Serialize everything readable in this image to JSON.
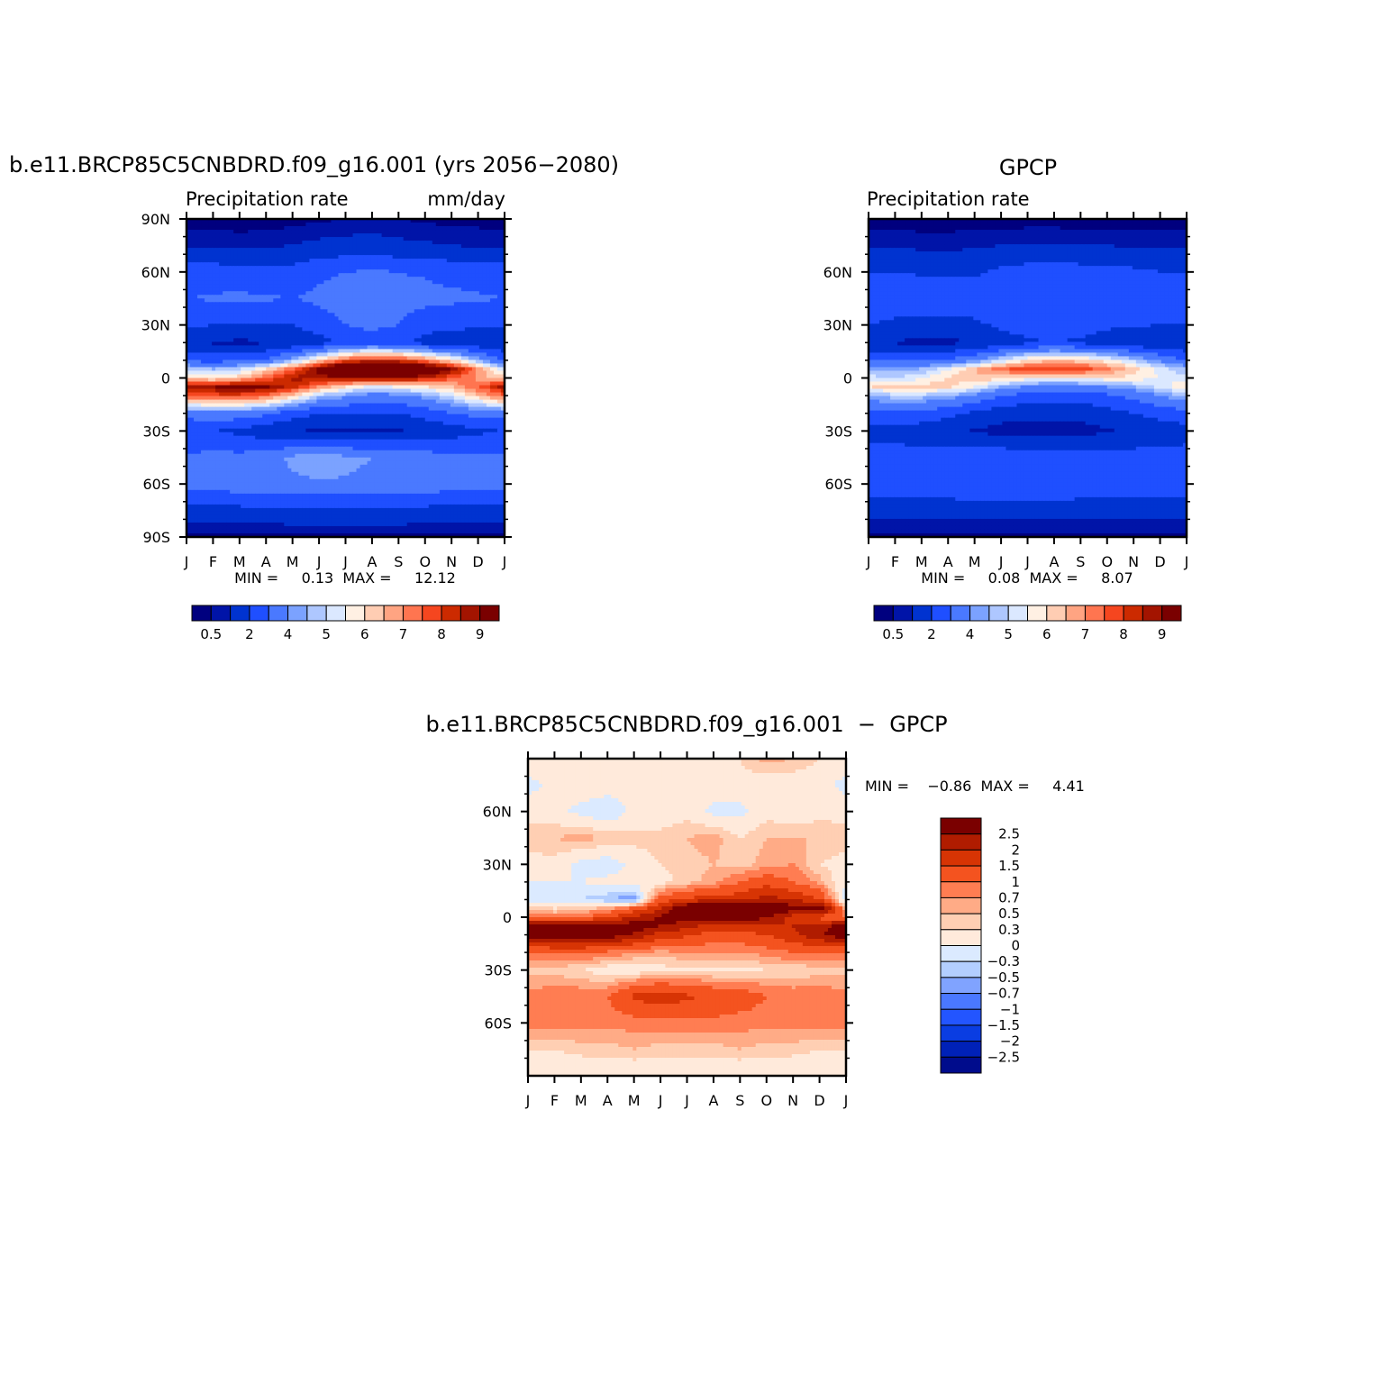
{
  "colors": {
    "precip_scale": [
      "#00007f",
      "#0014a8",
      "#0033d0",
      "#1f4fff",
      "#4a79ff",
      "#7ba2ff",
      "#aec7ff",
      "#dbe8ff",
      "#fff0e3",
      "#ffcdb3",
      "#ffa482",
      "#ff7550",
      "#f5461f",
      "#cc2a00",
      "#a31400",
      "#7a0000"
    ],
    "diff_scale": [
      "#000c8c",
      "#0021b8",
      "#0a3de2",
      "#2355ff",
      "#4a78ff",
      "#80a3ff",
      "#b3ceff",
      "#dbeaff",
      "#ffeadb",
      "#ffcfb3",
      "#ffab86",
      "#ff7d52",
      "#f4531f",
      "#d73404",
      "#b01c00",
      "#7a0000"
    ]
  },
  "panels": [
    {
      "title": "b.e11.BRCP85C5CNBDRD.f09_g16.001 (yrs 2056−2080)",
      "left_label": "Precipitation  rate",
      "right_label": "mm/day",
      "min_max": "MIN =     0.13  MAX =     12.12",
      "y_ticks": [
        "90N",
        "60N",
        "30N",
        "0",
        "30S",
        "60S",
        "90S"
      ],
      "x_ticks": [
        "J",
        "F",
        "M",
        "A",
        "M",
        "J",
        "J",
        "A",
        "S",
        "O",
        "N",
        "D",
        "J"
      ],
      "colorbar_labels": [
        "0.5",
        "2",
        "4",
        "5",
        "6",
        "7",
        "8",
        "9"
      ]
    },
    {
      "title": "GPCP",
      "left_label": "Precipitation  rate",
      "right_label": "",
      "min_max": "MIN =     0.08  MAX =     8.07",
      "y_ticks": [
        "60N",
        "30N",
        "0",
        "30S",
        "60S"
      ],
      "x_ticks": [
        "J",
        "F",
        "M",
        "A",
        "M",
        "J",
        "J",
        "A",
        "S",
        "O",
        "N",
        "D",
        "J"
      ],
      "colorbar_labels": [
        "0.5",
        "2",
        "4",
        "5",
        "6",
        "7",
        "8",
        "9"
      ]
    },
    {
      "title": "b.e11.BRCP85C5CNBDRD.f09_g16.001  −  GPCP",
      "min_max": "MIN =    −0.86  MAX =     4.41",
      "y_ticks": [
        "60N",
        "30N",
        "0",
        "30S",
        "60S"
      ],
      "x_ticks": [
        "J",
        "F",
        "M",
        "A",
        "M",
        "J",
        "J",
        "A",
        "S",
        "O",
        "N",
        "D",
        "J"
      ],
      "colorbar_labels": [
        "2.5",
        "2",
        "1.5",
        "1",
        "0.7",
        "0.5",
        "0.3",
        "0",
        "−0.3",
        "−0.5",
        "−0.7",
        "−1",
        "−1.5",
        "−2",
        "−2.5"
      ]
    }
  ],
  "chart_data": [
    {
      "type": "heatmap",
      "title": "b.e11.BRCP85C5CNBDRD.f09_g16.001 (yrs 2056−2080)",
      "xlabel": "",
      "ylabel": "",
      "x": [
        "J",
        "F",
        "M",
        "A",
        "M",
        "J",
        "J",
        "A",
        "S",
        "O",
        "N",
        "D",
        "J"
      ],
      "y": [
        90,
        75,
        60,
        45,
        30,
        20,
        10,
        5,
        0,
        -5,
        -10,
        -20,
        -30,
        -45,
        -60,
        -75,
        -90
      ],
      "ylim": [
        -90,
        90
      ],
      "values": [
        [
          0.2,
          0.2,
          0.2,
          0.2,
          0.3,
          0.4,
          0.5,
          0.6,
          0.5,
          0.4,
          0.3,
          0.3,
          0.2
        ],
        [
          0.9,
          0.9,
          0.8,
          0.9,
          1.0,
          1.2,
          1.3,
          1.3,
          1.2,
          1.1,
          1.0,
          0.9,
          0.9
        ],
        [
          2.5,
          2.5,
          2.4,
          2.3,
          2.4,
          2.8,
          3.0,
          3.1,
          3.0,
          2.9,
          2.7,
          2.6,
          2.5
        ],
        [
          3.0,
          3.1,
          3.2,
          3.1,
          3.0,
          3.2,
          3.5,
          3.6,
          3.3,
          3.3,
          3.2,
          3.1,
          3.0
        ],
        [
          2.2,
          2.0,
          2.0,
          1.9,
          2.0,
          2.5,
          3.0,
          3.2,
          3.0,
          2.4,
          2.3,
          2.2,
          2.2
        ],
        [
          1.0,
          0.9,
          0.8,
          0.9,
          1.1,
          1.6,
          2.3,
          2.6,
          2.3,
          1.6,
          1.3,
          1.1,
          1.0
        ],
        [
          2.8,
          2.6,
          2.8,
          3.2,
          4.5,
          6.2,
          7.6,
          8.2,
          8.0,
          7.2,
          6.0,
          4.5,
          2.8
        ],
        [
          5.0,
          4.5,
          5.0,
          6.0,
          7.5,
          9.3,
          11.2,
          12.1,
          11.5,
          10.5,
          9.0,
          7.0,
          5.0
        ],
        [
          6.2,
          5.8,
          6.3,
          7.5,
          8.6,
          8.8,
          8.8,
          8.9,
          8.9,
          8.4,
          7.6,
          6.8,
          6.2
        ],
        [
          8.8,
          9.0,
          9.3,
          9.1,
          8.3,
          7.0,
          6.0,
          5.3,
          5.6,
          6.0,
          6.5,
          7.5,
          8.8
        ],
        [
          7.5,
          7.8,
          7.8,
          7.4,
          6.2,
          4.8,
          4.2,
          3.6,
          3.8,
          4.3,
          5.2,
          6.4,
          7.5
        ],
        [
          3.5,
          3.7,
          3.6,
          3.2,
          2.5,
          2.0,
          2.0,
          2.0,
          2.0,
          2.4,
          3.0,
          3.4,
          3.5
        ],
        [
          2.0,
          2.0,
          1.8,
          1.3,
          1.0,
          0.9,
          0.8,
          0.8,
          0.9,
          1.2,
          1.5,
          1.8,
          2.0
        ],
        [
          3.2,
          3.3,
          3.3,
          3.5,
          4.2,
          4.5,
          4.2,
          4.0,
          3.8,
          3.5,
          3.3,
          3.3,
          3.2
        ],
        [
          3.4,
          3.5,
          3.6,
          3.7,
          3.8,
          3.9,
          3.9,
          3.8,
          3.7,
          3.6,
          3.5,
          3.4,
          3.4
        ],
        [
          1.6,
          1.6,
          1.7,
          1.7,
          1.8,
          1.8,
          1.8,
          1.8,
          1.8,
          1.7,
          1.7,
          1.6,
          1.6
        ],
        [
          0.3,
          0.3,
          0.3,
          0.3,
          0.3,
          0.3,
          0.3,
          0.3,
          0.3,
          0.3,
          0.3,
          0.3,
          0.3
        ]
      ],
      "colorbar_labels": [
        "0.5",
        "2",
        "4",
        "5",
        "6",
        "7",
        "8",
        "9"
      ]
    },
    {
      "type": "heatmap",
      "title": "GPCP",
      "xlabel": "",
      "ylabel": "",
      "x": [
        "J",
        "F",
        "M",
        "A",
        "M",
        "J",
        "J",
        "A",
        "S",
        "O",
        "N",
        "D",
        "J"
      ],
      "y": [
        90,
        75,
        60,
        45,
        30,
        20,
        10,
        5,
        0,
        -5,
        -10,
        -20,
        -30,
        -45,
        -60,
        -75,
        -90
      ],
      "ylim": [
        -90,
        90
      ],
      "values": [
        [
          0.2,
          0.2,
          0.2,
          0.2,
          0.2,
          0.2,
          0.2,
          0.2,
          0.2,
          0.2,
          0.2,
          0.2,
          0.2
        ],
        [
          0.9,
          0.9,
          0.8,
          0.8,
          0.9,
          1.0,
          1.1,
          1.1,
          1.0,
          1.0,
          0.9,
          0.9,
          0.9
        ],
        [
          2.0,
          2.0,
          1.9,
          1.8,
          1.8,
          2.2,
          2.4,
          2.5,
          2.4,
          2.3,
          2.2,
          2.0,
          2.0
        ],
        [
          2.6,
          2.6,
          2.6,
          2.6,
          2.6,
          2.8,
          3.0,
          3.0,
          3.0,
          2.8,
          2.7,
          2.6,
          2.6
        ],
        [
          2.0,
          1.8,
          1.7,
          1.7,
          1.8,
          2.2,
          2.6,
          2.7,
          2.6,
          2.2,
          2.1,
          2.0,
          2.0
        ],
        [
          1.0,
          0.9,
          0.8,
          0.8,
          1.0,
          1.4,
          1.8,
          2.0,
          1.8,
          1.4,
          1.2,
          1.1,
          1.0
        ],
        [
          3.0,
          2.8,
          2.8,
          3.1,
          3.8,
          5.0,
          6.0,
          6.4,
          6.2,
          5.7,
          4.8,
          3.8,
          3.0
        ],
        [
          4.5,
          4.2,
          4.6,
          5.4,
          6.4,
          7.4,
          7.9,
          8.0,
          7.9,
          7.2,
          6.3,
          5.3,
          4.5
        ],
        [
          5.2,
          5.0,
          5.4,
          6.1,
          6.5,
          6.2,
          5.9,
          5.7,
          5.8,
          5.9,
          5.8,
          5.5,
          5.2
        ],
        [
          6.0,
          6.2,
          6.3,
          6.1,
          5.5,
          4.5,
          3.8,
          3.5,
          3.7,
          4.0,
          4.5,
          5.2,
          6.0
        ],
        [
          4.6,
          4.8,
          4.8,
          4.5,
          3.8,
          3.0,
          2.6,
          2.4,
          2.5,
          2.8,
          3.3,
          4.0,
          4.6
        ],
        [
          2.6,
          2.7,
          2.6,
          2.3,
          1.8,
          1.4,
          1.3,
          1.3,
          1.3,
          1.6,
          2.0,
          2.4,
          2.6
        ],
        [
          1.6,
          1.6,
          1.5,
          1.2,
          0.9,
          0.7,
          0.6,
          0.6,
          0.7,
          0.9,
          1.2,
          1.4,
          1.6
        ],
        [
          2.4,
          2.4,
          2.4,
          2.5,
          2.6,
          2.7,
          2.6,
          2.6,
          2.5,
          2.5,
          2.4,
          2.4,
          2.4
        ],
        [
          2.6,
          2.7,
          2.8,
          2.9,
          3.0,
          3.0,
          3.0,
          2.9,
          2.9,
          2.8,
          2.7,
          2.6,
          2.6
        ],
        [
          1.3,
          1.3,
          1.3,
          1.3,
          1.3,
          1.4,
          1.4,
          1.4,
          1.3,
          1.3,
          1.3,
          1.3,
          1.3
        ],
        [
          0.3,
          0.3,
          0.3,
          0.3,
          0.3,
          0.3,
          0.3,
          0.3,
          0.3,
          0.3,
          0.3,
          0.3,
          0.3
        ]
      ],
      "colorbar_labels": [
        "0.5",
        "2",
        "4",
        "5",
        "6",
        "7",
        "8",
        "9"
      ]
    },
    {
      "type": "heatmap",
      "title": "b.e11.BRCP85C5CNBDRD.f09_g16.001  −  GPCP",
      "xlabel": "",
      "ylabel": "",
      "x": [
        "J",
        "F",
        "M",
        "A",
        "M",
        "J",
        "J",
        "A",
        "S",
        "O",
        "N",
        "D",
        "J"
      ],
      "y": [
        90,
        75,
        60,
        45,
        30,
        20,
        10,
        5,
        0,
        -5,
        -10,
        -20,
        -30,
        -45,
        -60,
        -75,
        -90
      ],
      "ylim": [
        -90,
        90
      ],
      "values": [
        [
          0.2,
          0.2,
          0.1,
          0.2,
          0.2,
          0.2,
          0.3,
          0.3,
          0.3,
          0.6,
          0.5,
          0.3,
          0.2
        ],
        [
          -0.1,
          0.1,
          0.2,
          0.2,
          0.1,
          0.2,
          0.2,
          0.2,
          0.2,
          0.1,
          0.1,
          0.1,
          -0.1
        ],
        [
          0.2,
          0.1,
          -0.1,
          -0.3,
          0.1,
          0.1,
          0.2,
          -0.1,
          -0.1,
          0.2,
          0.1,
          0.2,
          0.2
        ],
        [
          0.4,
          0.5,
          0.6,
          0.5,
          0.4,
          0.4,
          0.5,
          0.6,
          0.3,
          0.5,
          0.5,
          0.5,
          0.4
        ],
        [
          0.2,
          0.2,
          -0.1,
          -0.2,
          0.1,
          0.3,
          0.4,
          0.5,
          0.4,
          0.6,
          0.7,
          0.3,
          0.2
        ],
        [
          0.0,
          0.0,
          0.0,
          0.1,
          0.1,
          0.2,
          0.4,
          0.6,
          1.0,
          1.3,
          1.0,
          0.6,
          0.0
        ],
        [
          -0.2,
          -0.2,
          -0.3,
          -0.5,
          -0.7,
          1.2,
          1.6,
          1.8,
          1.8,
          2.2,
          2.0,
          1.5,
          -0.2
        ],
        [
          0.5,
          0.3,
          0.4,
          0.6,
          1.1,
          1.9,
          3.3,
          4.1,
          3.6,
          3.3,
          2.7,
          3.2,
          0.5
        ],
        [
          1.0,
          0.8,
          0.9,
          1.4,
          2.1,
          2.6,
          2.9,
          3.2,
          3.1,
          2.5,
          1.8,
          1.3,
          1.0
        ],
        [
          2.8,
          2.8,
          3.0,
          3.0,
          2.8,
          2.5,
          2.2,
          1.8,
          1.9,
          2.0,
          2.0,
          2.3,
          2.8
        ],
        [
          2.9,
          3.0,
          3.0,
          2.9,
          2.4,
          1.8,
          1.6,
          1.2,
          1.3,
          1.5,
          1.9,
          2.4,
          2.9
        ],
        [
          0.9,
          1.0,
          1.0,
          0.9,
          0.7,
          0.6,
          0.7,
          0.7,
          0.7,
          0.8,
          1.0,
          1.0,
          0.9
        ],
        [
          0.4,
          0.4,
          0.3,
          0.1,
          0.1,
          0.2,
          0.2,
          0.2,
          0.2,
          0.3,
          0.3,
          0.4,
          0.4
        ],
        [
          0.8,
          0.9,
          0.9,
          1.0,
          1.6,
          1.8,
          1.6,
          1.4,
          1.3,
          1.0,
          0.9,
          0.9,
          0.8
        ],
        [
          0.8,
          0.8,
          0.8,
          0.8,
          0.8,
          0.9,
          0.9,
          0.9,
          0.8,
          0.8,
          0.8,
          0.8,
          0.8
        ],
        [
          0.3,
          0.3,
          0.4,
          0.4,
          0.5,
          0.4,
          0.4,
          0.4,
          0.5,
          0.4,
          0.4,
          0.3,
          0.3
        ],
        [
          0.0,
          0.0,
          0.0,
          0.0,
          0.0,
          0.0,
          0.0,
          0.0,
          0.0,
          0.0,
          0.0,
          0.0,
          0.0
        ]
      ],
      "colorbar_labels": [
        "2.5",
        "2",
        "1.5",
        "1",
        "0.7",
        "0.5",
        "0.3",
        "0",
        "−0.3",
        "−0.5",
        "−0.7",
        "−1",
        "−1.5",
        "−2",
        "−2.5"
      ]
    }
  ]
}
